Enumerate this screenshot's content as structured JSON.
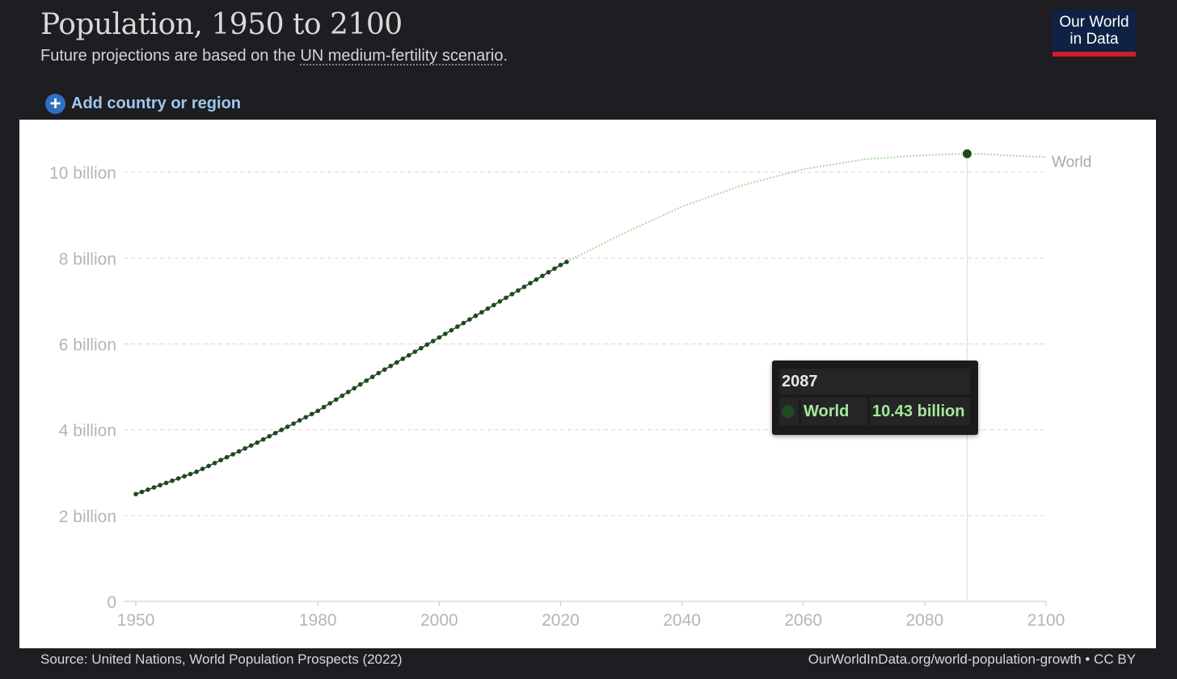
{
  "header": {
    "title": "Population, 1950 to 2100",
    "subtitle_prefix": "Future projections are based on the",
    "subtitle_link": "UN medium-fertility scenario",
    "subtitle_suffix": "."
  },
  "logo": {
    "line1": "Our World",
    "line2": "in Data"
  },
  "controls": {
    "add_label": "Add country or region"
  },
  "tooltip": {
    "year": "2087",
    "series": "World",
    "value": "10.43 billion"
  },
  "footer": {
    "source": "Source: United Nations, World Population Prospects (2022)",
    "credit": "OurWorldInData.org/world-population-growth • CC BY"
  },
  "colors": {
    "estimates": "#1e4a1e",
    "projection": "#a8dc9e",
    "grid": "#d6d6d6",
    "tick_text": "#b5b5b5",
    "logo_bg": "#0f2144",
    "logo_bar": "#cf1e2a",
    "link": "#9fc8ee"
  },
  "chart_data": {
    "type": "line",
    "title": "Population, 1950 to 2100",
    "xlim": [
      1948,
      2100
    ],
    "ylim": [
      0,
      11
    ],
    "x_ticks": [
      1950,
      1980,
      2000,
      2020,
      2040,
      2060,
      2080,
      2100
    ],
    "y_ticks": [
      {
        "value": 0,
        "label": "0"
      },
      {
        "value": 2,
        "label": "2 billion"
      },
      {
        "value": 4,
        "label": "4 billion"
      },
      {
        "value": 6,
        "label": "6 billion"
      },
      {
        "value": 8,
        "label": "8 billion"
      },
      {
        "value": 10,
        "label": "10 billion"
      }
    ],
    "y_unit": "billion",
    "grid": true,
    "highlight": {
      "x": 2087,
      "y": 10.43
    },
    "series": [
      {
        "name": "World",
        "estimate_end_year": 2021,
        "x": [
          1950,
          1960,
          1970,
          1980,
          1990,
          2000,
          2010,
          2020,
          2021,
          2030,
          2040,
          2050,
          2060,
          2070,
          2080,
          2087,
          2090,
          2100
        ],
        "y": [
          2.5,
          3.02,
          3.7,
          4.44,
          5.32,
          6.15,
          6.99,
          7.84,
          7.91,
          8.55,
          9.2,
          9.7,
          10.07,
          10.3,
          10.4,
          10.43,
          10.42,
          10.35
        ]
      }
    ]
  }
}
